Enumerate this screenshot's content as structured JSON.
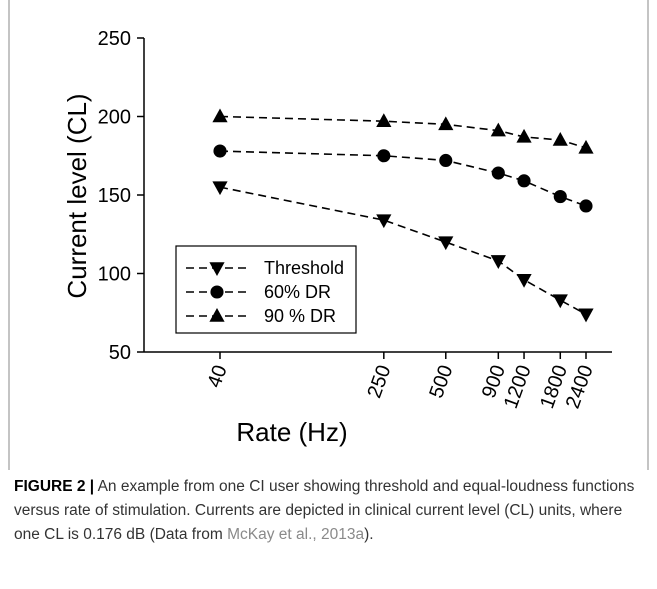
{
  "chart_data": {
    "type": "line",
    "xlabel": "Rate (Hz)",
    "ylabel": "Current level (CL)",
    "x_scale": "log",
    "x": [
      40,
      250,
      500,
      900,
      1200,
      1800,
      2400
    ],
    "x_tick_labels": [
      "40",
      "250",
      "500",
      "900",
      "1200",
      "1800",
      "2400"
    ],
    "ylim": [
      50,
      250
    ],
    "y_ticks": [
      50,
      100,
      150,
      200,
      250
    ],
    "grid": false,
    "legend_position": "lower-left",
    "series": [
      {
        "name": "Threshold",
        "marker": "triangle-down",
        "values": [
          155,
          134,
          120,
          108,
          96,
          83,
          74
        ]
      },
      {
        "name": "60% DR",
        "marker": "circle",
        "values": [
          178,
          175,
          172,
          164,
          159,
          149,
          143
        ]
      },
      {
        "name": "90 % DR",
        "marker": "triangle-up",
        "values": [
          200,
          197,
          195,
          191,
          187,
          185,
          180
        ]
      }
    ]
  },
  "caption": {
    "label": "FIGURE 2 |",
    "text": " An example from one CI user showing threshold and equal-loudness functions versus rate of stimulation. Currents are depicted in clinical current level (CL) units, where one CL is 0.176 dB (Data from ",
    "ref": "McKay et al., 2013a",
    "end": ")."
  }
}
